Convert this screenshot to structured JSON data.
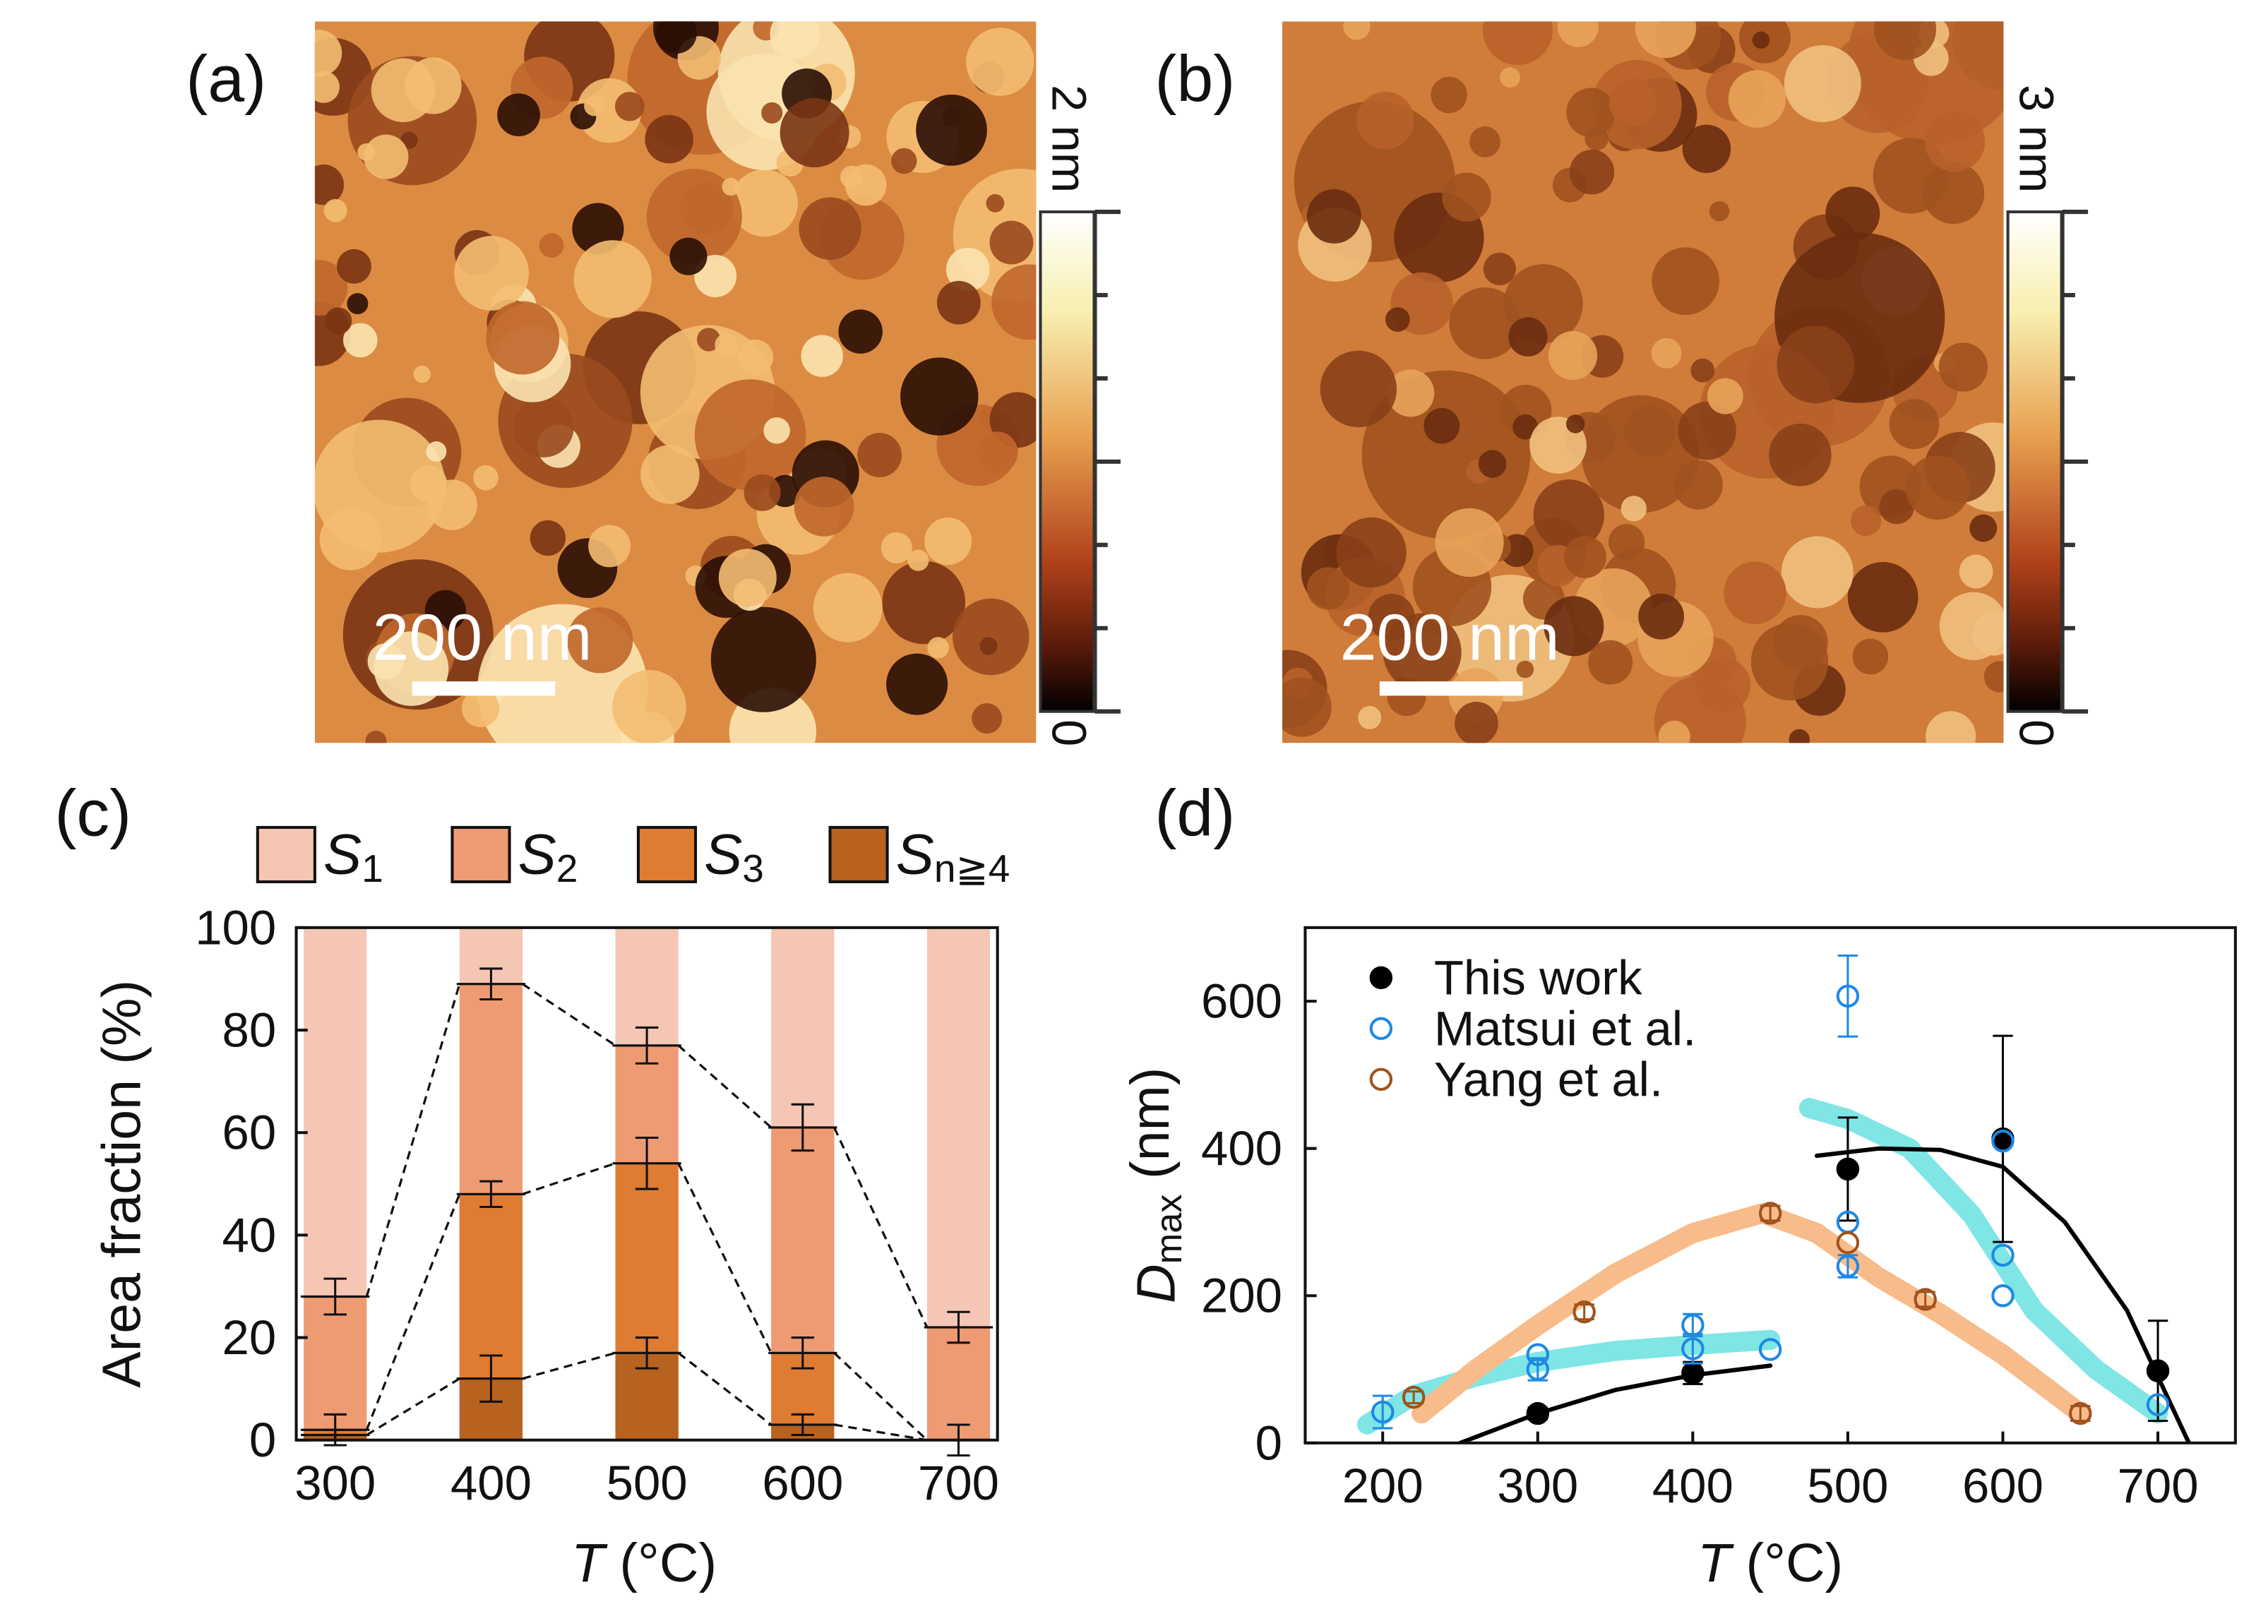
{
  "panels": [
    {
      "label": "(a)",
      "scale_bar": "200 nm",
      "colorbar_max": "2 nm",
      "colorbar_min": "0"
    },
    {
      "label": "(b)",
      "scale_bar": "200 nm",
      "colorbar_max": "3 nm",
      "colorbar_min": "0"
    }
  ],
  "chart_data": [
    {
      "type": "bar",
      "panel_label": "(c)",
      "categories": [
        "300",
        "400",
        "500",
        "600",
        "700"
      ],
      "series": [
        {
          "name": "S1",
          "color": "#f5c6b3",
          "values": [
            100,
            100,
            100,
            100,
            100
          ]
        },
        {
          "name": "S2",
          "color": "#ee9b73",
          "values": [
            28,
            89,
            77,
            61,
            22
          ],
          "errors": [
            3.5,
            3,
            3.5,
            4.5,
            3
          ],
          "dashed_connectors": true
        },
        {
          "name": "S3",
          "color": "#e07b32",
          "values": [
            2,
            48,
            54,
            17,
            0
          ],
          "errors": [
            3,
            2.5,
            5,
            3,
            3
          ],
          "dashed_connectors": true
        },
        {
          "name": "Sn≧4",
          "color": "#b8621f",
          "values": [
            1,
            12,
            17,
            3,
            0
          ],
          "errors": [
            1,
            4.5,
            3,
            2,
            null
          ],
          "dashed_connectors": true
        }
      ],
      "ylim": [
        0,
        100
      ],
      "yticks": [
        0,
        20,
        40,
        60,
        80,
        100
      ],
      "ylabel": "Area fraction (%)",
      "xlabel": "T (°C)"
    },
    {
      "type": "scatter",
      "panel_label": "(d)",
      "xlim": [
        150,
        750
      ],
      "xticks": [
        200,
        300,
        400,
        500,
        600,
        700
      ],
      "ylim": [
        0,
        700
      ],
      "yticks": [
        0,
        200,
        400,
        600
      ],
      "xlabel": "T (°C)",
      "ylabel": "Dmax (nm)",
      "legend": "upper left",
      "series": [
        {
          "name": "This work",
          "color": "#000000",
          "marker": "filled",
          "x": [
            300,
            400,
            500,
            600,
            700
          ],
          "values": [
            40,
            95,
            372,
            413,
            98
          ],
          "errors": [
            8,
            15,
            70,
            140,
            68
          ]
        },
        {
          "name": "Matsui et al.",
          "color": "#1e88e5",
          "marker": "open",
          "x": [
            200,
            300,
            300,
            400,
            400,
            450,
            500,
            500,
            500,
            600,
            600,
            600,
            700
          ],
          "values": [
            42,
            120,
            100,
            160,
            128,
            127,
            607,
            300,
            240,
            410,
            255,
            200,
            52
          ],
          "errors": [
            22,
            null,
            15,
            15,
            20,
            null,
            55,
            null,
            15,
            null,
            null,
            null,
            null
          ]
        },
        {
          "name": "Yang et al.",
          "color": "#a0521d",
          "marker": "open",
          "x": [
            220,
            330,
            450,
            500,
            550,
            650
          ],
          "values": [
            62,
            178,
            312,
            272,
            195,
            40
          ],
          "errors": [
            8,
            10,
            10,
            null,
            10,
            10
          ]
        }
      ],
      "fits": [
        {
          "color": "#7fe5e5",
          "width": 14,
          "x": [
            190,
            220,
            260,
            300,
            350,
            400,
            450,
            null,
            475,
            500,
            540,
            580,
            620,
            660,
            700
          ],
          "values": [
            25,
            65,
            90,
            110,
            125,
            133,
            140,
            null,
            455,
            440,
            400,
            310,
            180,
            100,
            40
          ]
        },
        {
          "color": "#f8bb8a",
          "width": 14,
          "x": [
            225,
            260,
            300,
            350,
            400,
            445,
            480,
            520,
            560,
            600,
            650
          ],
          "values": [
            40,
            100,
            160,
            230,
            285,
            312,
            285,
            225,
            175,
            120,
            40
          ]
        },
        {
          "color": "#000000",
          "width": 3,
          "x": [
            250,
            300,
            350,
            400,
            450,
            null,
            480,
            520,
            560,
            600,
            640,
            680,
            720
          ],
          "values": [
            0,
            40,
            72,
            92,
            105,
            null,
            390,
            400,
            398,
            375,
            300,
            180,
            0
          ]
        }
      ]
    }
  ]
}
